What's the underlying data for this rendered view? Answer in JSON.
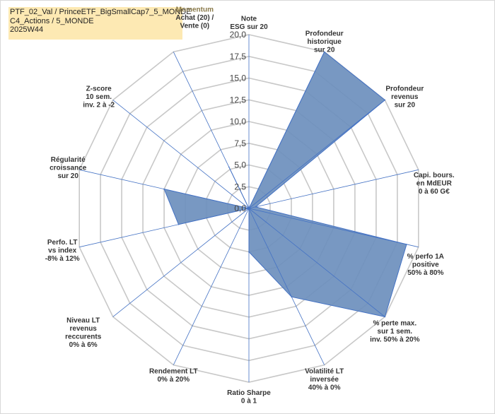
{
  "header": {
    "line1": "PTF_02_Val / PrinceETF_BigSmallCap7_5_MONDE",
    "line2": "C4_Actions / 5_MONDE",
    "line3": "2025W44"
  },
  "chart_data": {
    "type": "radar",
    "title": "",
    "rmin": 0,
    "rmax": 20,
    "ticks": [
      "0,0",
      "2,5",
      "5,0",
      "7,5",
      "10,0",
      "12,5",
      "15,0",
      "17,5",
      "20,0"
    ],
    "tick_values": [
      0,
      2.5,
      5,
      7.5,
      10,
      12.5,
      15,
      17.5,
      20
    ],
    "axes": [
      {
        "lines": [
          "Note",
          "ESG sur 20"
        ]
      },
      {
        "lines": [
          "Profondeur",
          "historique",
          "sur 20"
        ]
      },
      {
        "lines": [
          "Profondeur",
          "revenus",
          "sur 20"
        ]
      },
      {
        "lines": [
          "Capi. bours.",
          "en MdEUR",
          "0 à 60 G€"
        ]
      },
      {
        "lines": [
          "% perfo 1A",
          "positive",
          "50% à 80%"
        ]
      },
      {
        "lines": [
          "% perte max.",
          "sur 1 sem.",
          "inv. 50% à 20%"
        ]
      },
      {
        "lines": [
          "Volatilité LT",
          "inversée",
          "40% à 0%"
        ]
      },
      {
        "lines": [
          "Ratio Sharpe",
          "0 à 1"
        ]
      },
      {
        "lines": [
          "Rendement LT",
          "0% à 20%"
        ]
      },
      {
        "lines": [
          "Niveau LT",
          "revenus",
          "reccurents",
          "0% à 6%"
        ]
      },
      {
        "lines": [
          "Perfo. LT",
          "vs index",
          "-8% à 12%"
        ]
      },
      {
        "lines": [
          "Régularité",
          "croissance",
          "sur 20"
        ]
      },
      {
        "lines": [
          "Z-score",
          "10 sem.",
          "inv. 2 à -2"
        ]
      },
      {
        "lines": [
          "Momentum",
          "Achat (20) /",
          "Vente (0)"
        ],
        "highlight": "Momentum"
      }
    ],
    "values": [
      0,
      20,
      20,
      0.8,
      18.6,
      20,
      11.3,
      5,
      0,
      0,
      8.3,
      10,
      0,
      5.3
    ],
    "fill_color": "#6d8fbd",
    "stroke_color": "#4472c4",
    "grid_color": "#c8c8c8",
    "spoke_color": "#4472c4",
    "grid": true,
    "legend": "none"
  }
}
